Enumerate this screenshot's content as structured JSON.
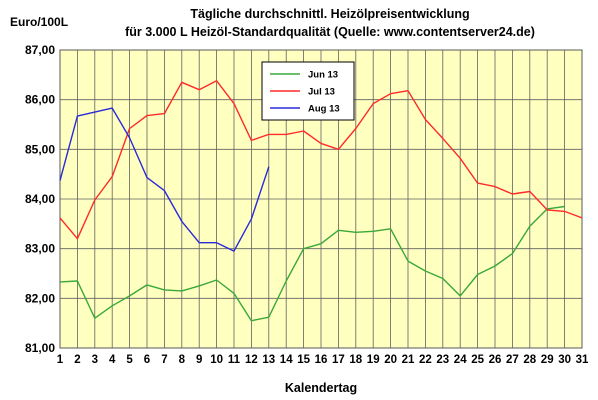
{
  "chart_data": {
    "type": "line",
    "title": "Tägliche durchschnittl. Heizölpreisentwicklung",
    "subtitle": "für 3.000 L Heizöl-Standardqualität (Quelle: www.contentserver24.de)",
    "ylabel": "Euro/100L",
    "xlabel": "Kalendertag",
    "ylim": [
      81,
      87
    ],
    "yticks": [
      "81,00",
      "82,00",
      "83,00",
      "84,00",
      "85,00",
      "86,00",
      "87,00"
    ],
    "x": [
      1,
      2,
      3,
      4,
      5,
      6,
      7,
      8,
      9,
      10,
      11,
      12,
      13,
      14,
      15,
      16,
      17,
      18,
      19,
      20,
      21,
      22,
      23,
      24,
      25,
      26,
      27,
      28,
      29,
      30,
      31
    ],
    "grid": true,
    "legend_position": "top-center",
    "plot_background": "#ffffc0",
    "series": [
      {
        "name": "Jun 13",
        "color": "#3aa83a",
        "values": [
          82.33,
          82.35,
          81.6,
          81.85,
          82.05,
          82.27,
          82.17,
          82.15,
          82.25,
          82.37,
          82.1,
          81.55,
          81.62,
          82.35,
          83.0,
          83.1,
          83.37,
          83.33,
          83.35,
          83.4,
          82.75,
          82.55,
          82.4,
          82.05,
          82.48,
          82.65,
          82.9,
          83.45,
          83.8,
          83.85,
          null
        ]
      },
      {
        "name": "Jul 13",
        "color": "#ff2a2a",
        "values": [
          83.62,
          83.2,
          83.98,
          84.45,
          85.42,
          85.68,
          85.72,
          86.35,
          86.2,
          86.38,
          85.92,
          85.18,
          85.3,
          85.3,
          85.37,
          85.12,
          85.0,
          85.42,
          85.92,
          86.12,
          86.18,
          85.6,
          85.22,
          84.82,
          84.32,
          84.25,
          84.1,
          84.15,
          83.78,
          83.75,
          83.62
        ]
      },
      {
        "name": "Aug 13",
        "color": "#2a2ad8",
        "values": [
          84.37,
          85.67,
          85.75,
          85.83,
          85.23,
          84.43,
          84.17,
          83.55,
          83.12,
          83.12,
          82.95,
          83.6,
          84.65,
          null,
          null,
          null,
          null,
          null,
          null,
          null,
          null,
          null,
          null,
          null,
          null,
          null,
          null,
          null,
          null,
          null,
          null
        ]
      }
    ]
  }
}
